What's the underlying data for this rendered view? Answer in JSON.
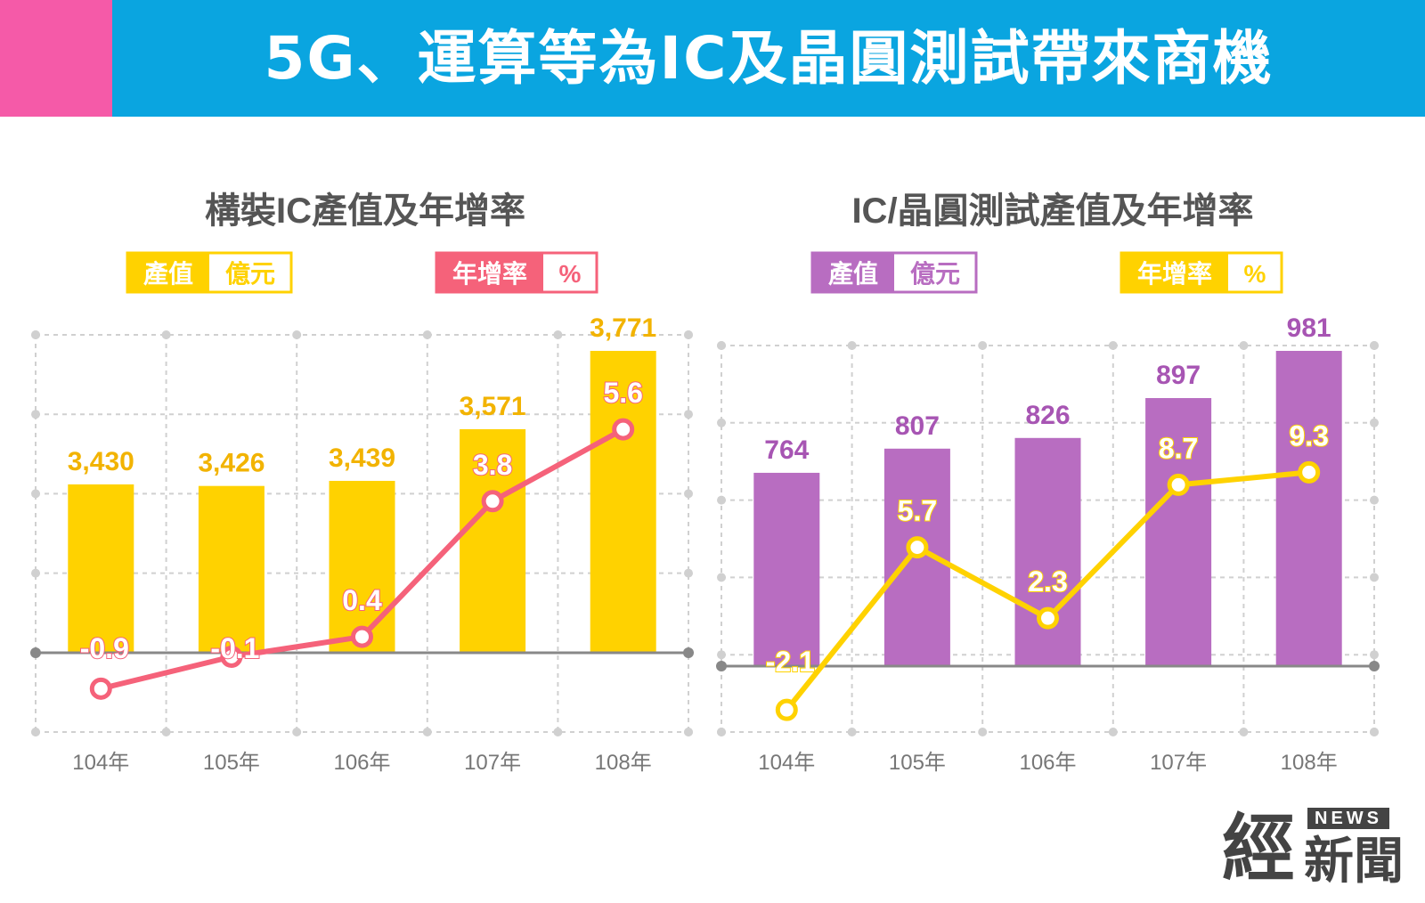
{
  "header": {
    "title": "5G、運算等為IC及晶圓測試帶來商機"
  },
  "colors": {
    "banner": "#0aa5e0",
    "accent": "#f55aa8",
    "yellow": "#ffd200",
    "pink": "#f5627a",
    "purple": "#b86dc1",
    "grid": "#cccccc",
    "axis_text": "#777777"
  },
  "logo": {
    "big": "經",
    "news": "NEWS",
    "small": "新聞"
  },
  "chart_data": [
    {
      "type": "bar+line",
      "title": "構裝IC產值及年增率",
      "categories": [
        "104年",
        "105年",
        "106年",
        "107年",
        "108年"
      ],
      "bar_series": {
        "name": "產值",
        "unit": "億元",
        "values": [
          3430,
          3426,
          3439,
          3571,
          3771
        ],
        "labels": [
          "3,430",
          "3,426",
          "3,439",
          "3,571",
          "3,771"
        ],
        "color": "#ffd200",
        "label_color": "#f2b300"
      },
      "line_series": {
        "name": "年增率",
        "unit": "%",
        "values": [
          -0.9,
          -0.1,
          0.4,
          3.8,
          5.6
        ],
        "labels": [
          "-0.9",
          "-0.1",
          "0.4",
          "3.8",
          "5.6"
        ],
        "color": "#f5627a"
      },
      "legend": {
        "bar_name": "產值",
        "bar_unit": "億元",
        "line_name": "年增率",
        "line_unit": "%"
      }
    },
    {
      "type": "bar+line",
      "title": "IC/晶圓測試產值及年增率",
      "categories": [
        "104年",
        "105年",
        "106年",
        "107年",
        "108年"
      ],
      "bar_series": {
        "name": "產值",
        "unit": "億元",
        "values": [
          764,
          807,
          826,
          897,
          981
        ],
        "labels": [
          "764",
          "807",
          "826",
          "897",
          "981"
        ],
        "color": "#b86dc1",
        "label_color": "#a755b3"
      },
      "line_series": {
        "name": "年增率",
        "unit": "%",
        "values": [
          -2.1,
          5.7,
          2.3,
          8.7,
          9.3
        ],
        "labels": [
          "-2.1",
          "5.7",
          "2.3",
          "8.7",
          "9.3"
        ],
        "color": "#ffd200"
      },
      "legend": {
        "bar_name": "產值",
        "bar_unit": "億元",
        "line_name": "年增率",
        "line_unit": "%"
      }
    }
  ]
}
